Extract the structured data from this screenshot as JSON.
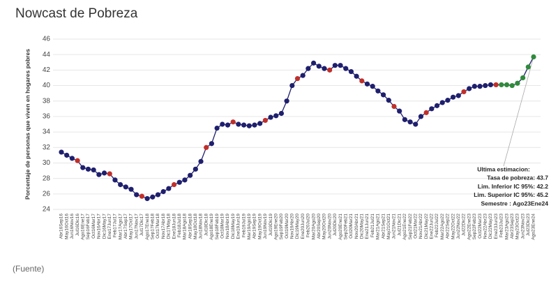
{
  "chart_data": {
    "type": "line",
    "title": "Nowcast de Pobreza",
    "ylabel": "Porcentaje de personas que viven en hogares pobres",
    "footer": "(Fuente)",
    "categories": [
      "Abr16Sep16",
      "May16Oct16",
      "Jun16Nov16",
      "Jul16Dic16",
      "Ago16Ene17",
      "Sep16Feb17",
      "Oct16Mar17",
      "Nov16Abr17",
      "Dic16May17",
      "Ene17Jun17",
      "Feb17Jul17",
      "Mar17Ago17",
      "Abr17Sep17",
      "May17Oct17",
      "Jun17Nov17",
      "Jul17Dic17",
      "Ago17Ene18",
      "Sep17Feb18",
      "Oct17Mar18",
      "Nov17Abr18",
      "Dic17May18",
      "Ene18Jun18",
      "Feb18Jul18",
      "Mar18Ago18",
      "Abr18Sep18",
      "May18Oct18",
      "Jun18Nov18",
      "Jul18Dic18",
      "Ago18Ene19",
      "Sep18Feb19",
      "Oct18Mar19",
      "Nov18Abr19",
      "Dic18May19",
      "Ene19Jun19",
      "Feb19Jul19",
      "Mar19Ago19",
      "Abr19Sep19",
      "May19Oct19",
      "Jun19Nov19",
      "Jul19Dic19",
      "Ago19Ene20",
      "Sep19Feb20",
      "Oct19Mar20",
      "Nov19Abr20",
      "Dic19May20",
      "Ene20Jun20",
      "Feb20Jul20",
      "Mar20Ago20",
      "Abr20Sep20",
      "May20Oct20",
      "Jun20Nov20",
      "Jul20Dic20",
      "Ago20Ene21",
      "Sep20Feb21",
      "Oct20Mar21",
      "Nov20Abr21",
      "Dic20May21",
      "Ene21Jun21",
      "Feb21Jul21",
      "Mar21Ago21",
      "Abr21Sep21",
      "May21Oct21",
      "Jun21Nov21",
      "Jul21Dic21",
      "Ago21Ene22",
      "Sep21Feb22",
      "Oct21Mar22",
      "Nov21Abr22",
      "Dic21May22",
      "Ene22Jun22",
      "Feb22Jul22",
      "Mar22Ago22",
      "Abr22Sep22",
      "May22Oct22",
      "Jun22Nov22",
      "Jul22Dic22",
      "Ago22Ene23",
      "Sep22Feb23",
      "Oct22Mar23",
      "Nov22Abr23",
      "Dic22May23",
      "Ene23Jun23",
      "Feb23Jul23",
      "Mar23Ago23",
      "Abr23Sep23",
      "May23Oct23",
      "Jun23Nov23",
      "Jul23Dic23",
      "Ago23Ene24"
    ],
    "values": [
      31.4,
      31.0,
      30.6,
      30.3,
      29.4,
      29.2,
      29.1,
      28.5,
      28.7,
      28.6,
      27.8,
      27.2,
      26.9,
      26.6,
      25.9,
      25.7,
      25.4,
      25.6,
      25.9,
      26.3,
      26.7,
      27.2,
      27.5,
      27.8,
      28.4,
      29.2,
      30.2,
      32.0,
      32.5,
      34.5,
      35.0,
      34.9,
      35.3,
      35.0,
      34.9,
      34.8,
      34.9,
      35.1,
      35.5,
      35.9,
      36.1,
      36.4,
      38.0,
      40.0,
      40.9,
      41.3,
      42.2,
      42.9,
      42.5,
      42.2,
      42.0,
      42.6,
      42.6,
      42.2,
      41.8,
      41.2,
      40.6,
      40.2,
      39.9,
      39.3,
      38.8,
      38.1,
      37.3,
      36.7,
      35.6,
      35.3,
      35.0,
      36.0,
      36.5,
      37.0,
      37.4,
      37.8,
      38.1,
      38.5,
      38.7,
      39.2,
      39.6,
      39.9,
      39.9,
      40.0,
      40.1,
      40.1,
      40.1,
      40.1,
      40.0,
      40.3,
      41.0,
      42.4,
      43.7
    ],
    "color": "#1f1f6e",
    "point_colors": [
      "#1f1f6e",
      "#1f1f6e",
      "#1f1f6e",
      "#c0302b",
      "#1f1f6e",
      "#1f1f6e",
      "#1f1f6e",
      "#1f1f6e",
      "#1f1f6e",
      "#c0302b",
      "#1f1f6e",
      "#1f1f6e",
      "#1f1f6e",
      "#1f1f6e",
      "#1f1f6e",
      "#c0302b",
      "#1f1f6e",
      "#1f1f6e",
      "#1f1f6e",
      "#1f1f6e",
      "#1f1f6e",
      "#c0302b",
      "#1f1f6e",
      "#1f1f6e",
      "#1f1f6e",
      "#1f1f6e",
      "#1f1f6e",
      "#c0302b",
      "#1f1f6e",
      "#1f1f6e",
      "#1f1f6e",
      "#1f1f6e",
      "#c0302b",
      "#1f1f6e",
      "#1f1f6e",
      "#1f1f6e",
      "#1f1f6e",
      "#1f1f6e",
      "#c0302b",
      "#1f1f6e",
      "#1f1f6e",
      "#1f1f6e",
      "#1f1f6e",
      "#1f1f6e",
      "#c0302b",
      "#1f1f6e",
      "#1f1f6e",
      "#1f1f6e",
      "#1f1f6e",
      "#1f1f6e",
      "#c0302b",
      "#1f1f6e",
      "#1f1f6e",
      "#1f1f6e",
      "#1f1f6e",
      "#1f1f6e",
      "#c0302b",
      "#1f1f6e",
      "#1f1f6e",
      "#1f1f6e",
      "#1f1f6e",
      "#1f1f6e",
      "#c0302b",
      "#1f1f6e",
      "#1f1f6e",
      "#1f1f6e",
      "#1f1f6e",
      "#1f1f6e",
      "#c0302b",
      "#1f1f6e",
      "#1f1f6e",
      "#1f1f6e",
      "#1f1f6e",
      "#1f1f6e",
      "#1f1f6e",
      "#c0302b",
      "#1f1f6e",
      "#1f1f6e",
      "#1f1f6e",
      "#1f1f6e",
      "#1f1f6e",
      "#c0302b",
      "#2e8b3a",
      "#2e8b3a",
      "#2e8b3a",
      "#2e8b3a",
      "#2e8b3a",
      "#2e8b3a",
      "#2e8b3a"
    ],
    "ylim": [
      24,
      46
    ],
    "yticks": [
      24,
      26,
      28,
      30,
      32,
      34,
      36,
      38,
      40,
      42,
      44,
      46
    ],
    "grid": true,
    "annotation": [
      "Ultima estimacion:",
      "Tasa de pobreza:  43.7",
      "Lim. Inferior IC 95%:  42.2",
      "Lim. Superior IC 95%:  45.2",
      "Semestre : Ago23Ene24"
    ]
  }
}
